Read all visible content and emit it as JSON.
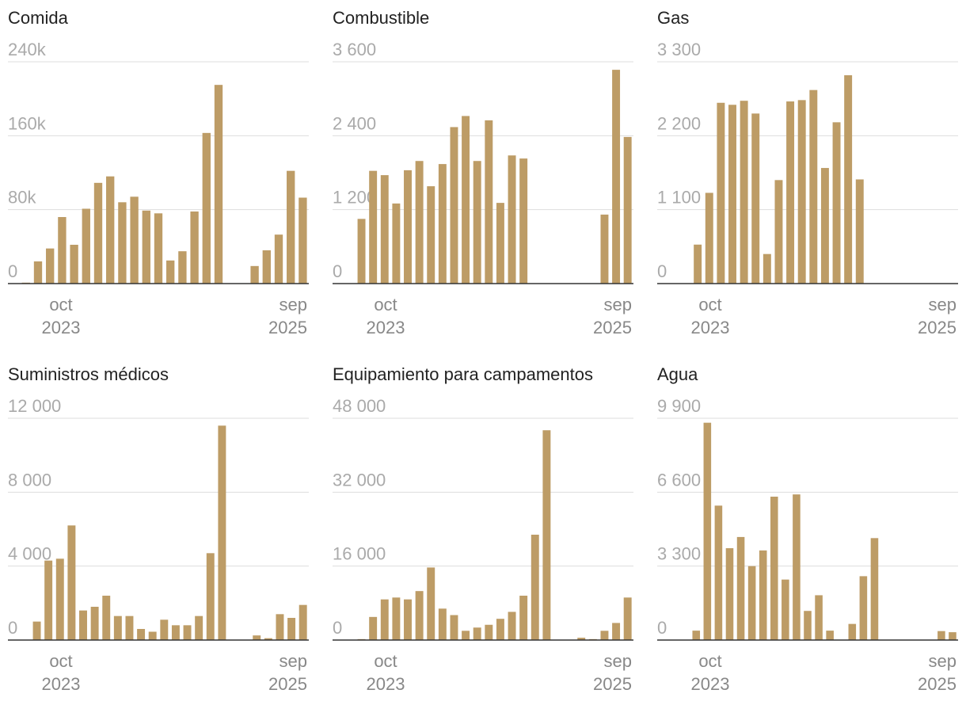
{
  "colors": {
    "bar": "#bd9c66",
    "grid": "#dddddd",
    "axis": "#333333"
  },
  "chart_data": [
    {
      "type": "bar",
      "title": "Comida",
      "ticks": [
        0,
        80000,
        160000,
        240000
      ],
      "tick_labels": [
        "0",
        "80k",
        "160k",
        "240k"
      ],
      "ylim": [
        0,
        240000
      ],
      "x_labels": [
        {
          "month": "oct",
          "year": "2023"
        },
        {
          "month": "sep",
          "year": "2025"
        }
      ],
      "values": [
        0,
        1000,
        24000,
        38000,
        72000,
        42000,
        81000,
        109000,
        116000,
        88000,
        94000,
        79000,
        76000,
        25000,
        35000,
        78000,
        163000,
        215000,
        0,
        0,
        19000,
        36000,
        53000,
        122000,
        93000
      ]
    },
    {
      "type": "bar",
      "title": "Combustible",
      "ticks": [
        0,
        1200,
        2400,
        3600
      ],
      "tick_labels": [
        "0",
        "1 200",
        "2 400",
        "3 600"
      ],
      "ylim": [
        0,
        3600
      ],
      "x_labels": [
        {
          "month": "oct",
          "year": "2023"
        },
        {
          "month": "sep",
          "year": "2025"
        }
      ],
      "values": [
        0,
        0,
        1050,
        1830,
        1760,
        1300,
        1840,
        1990,
        1580,
        1940,
        2540,
        2720,
        1990,
        2650,
        1310,
        2080,
        2030,
        0,
        0,
        0,
        0,
        0,
        0,
        1120,
        3470,
        2380
      ]
    },
    {
      "type": "bar",
      "title": "Gas",
      "ticks": [
        0,
        1100,
        2200,
        3300
      ],
      "tick_labels": [
        "0",
        "1 100",
        "2 200",
        "3 300"
      ],
      "ylim": [
        0,
        3300
      ],
      "x_labels": [
        {
          "month": "oct",
          "year": "2023"
        },
        {
          "month": "sep",
          "year": "2025"
        }
      ],
      "values": [
        0,
        0,
        0,
        580,
        1350,
        2690,
        2660,
        2720,
        2530,
        440,
        1540,
        2710,
        2730,
        2880,
        1720,
        2400,
        3100,
        1550,
        0,
        0,
        0,
        0,
        0,
        0,
        0,
        0
      ]
    },
    {
      "type": "bar",
      "title": "Suministros médicos",
      "ticks": [
        0,
        4000,
        8000,
        12000
      ],
      "tick_labels": [
        "0",
        "4 000",
        "8 000",
        "12 000"
      ],
      "ylim": [
        0,
        12000
      ],
      "x_labels": [
        {
          "month": "oct",
          "year": "2023"
        },
        {
          "month": "sep",
          "year": "2025"
        }
      ],
      "values": [
        0,
        0,
        1000,
        4300,
        4400,
        6200,
        1600,
        1800,
        2400,
        1300,
        1300,
        600,
        450,
        1100,
        800,
        800,
        1300,
        4700,
        11600,
        0,
        0,
        250,
        100,
        1400,
        1200,
        1900
      ]
    },
    {
      "type": "bar",
      "title": "Equipamiento para campamentos",
      "ticks": [
        0,
        16000,
        32000,
        48000
      ],
      "tick_labels": [
        "0",
        "16 000",
        "32 000",
        "48 000"
      ],
      "ylim": [
        0,
        48000
      ],
      "x_labels": [
        {
          "month": "oct",
          "year": "2023"
        },
        {
          "month": "sep",
          "year": "2025"
        }
      ],
      "values": [
        0,
        0,
        200,
        5000,
        8800,
        9200,
        8800,
        10600,
        15700,
        6800,
        5400,
        2000,
        2700,
        3300,
        4600,
        6100,
        9600,
        22800,
        45400,
        0,
        0,
        500,
        200,
        2000,
        3700,
        9200
      ]
    },
    {
      "type": "bar",
      "title": "Agua",
      "ticks": [
        0,
        3300,
        6600,
        9900
      ],
      "tick_labels": [
        "0",
        "3 300",
        "6 600",
        "9 900"
      ],
      "ylim": [
        0,
        9900
      ],
      "x_labels": [
        {
          "month": "oct",
          "year": "2023"
        },
        {
          "month": "sep",
          "year": "2025"
        }
      ],
      "values": [
        0,
        0,
        0,
        420,
        9700,
        6000,
        4100,
        4600,
        3300,
        4000,
        6400,
        2700,
        6500,
        1300,
        2000,
        420,
        0,
        720,
        2850,
        4550,
        0,
        0,
        0,
        0,
        0,
        400,
        350
      ]
    }
  ]
}
